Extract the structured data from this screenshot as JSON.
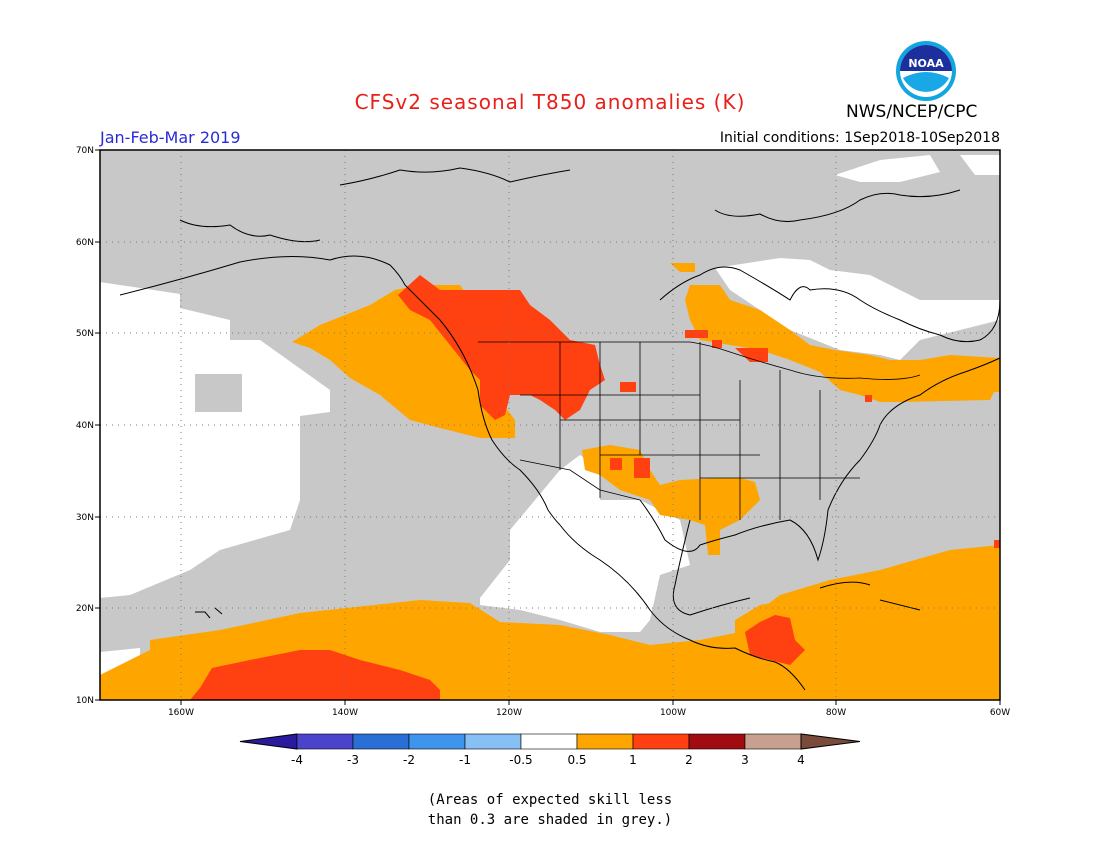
{
  "title": "CFSv2 seasonal T850 anomalies (K)",
  "period": "Jan-Feb-Mar 2019",
  "initial_conditions": "Initial conditions: 1Sep2018-10Sep2018",
  "agency": "NWS/NCEP/CPC",
  "logo_text": "NOAA",
  "lat_labels": [
    "70N",
    "60N",
    "50N",
    "40N",
    "30N",
    "20N",
    "10N"
  ],
  "lon_labels": [
    "160W",
    "140W",
    "120W",
    "100W",
    "80W",
    "60W"
  ],
  "colorbar": {
    "labels": [
      "-4",
      "-3",
      "-2",
      "-1",
      "-0.5",
      "0.5",
      "1",
      "2",
      "3",
      "4"
    ],
    "colors": [
      "#2a1a9e",
      "#4a44cc",
      "#2a6fd6",
      "#3f94ec",
      "#86c0f4",
      "#ffffff",
      "#ffa500",
      "#ff4010",
      "#a00c10",
      "#c9a090",
      "#7a4a3a"
    ]
  },
  "colors": {
    "grey": "#c8c8c8",
    "orange": "#ffa500",
    "red": "#ff4010",
    "white": "#ffffff"
  },
  "note_line1": "(Areas of expected skill less",
  "note_line2": "than 0.3 are shaded in grey.)"
}
